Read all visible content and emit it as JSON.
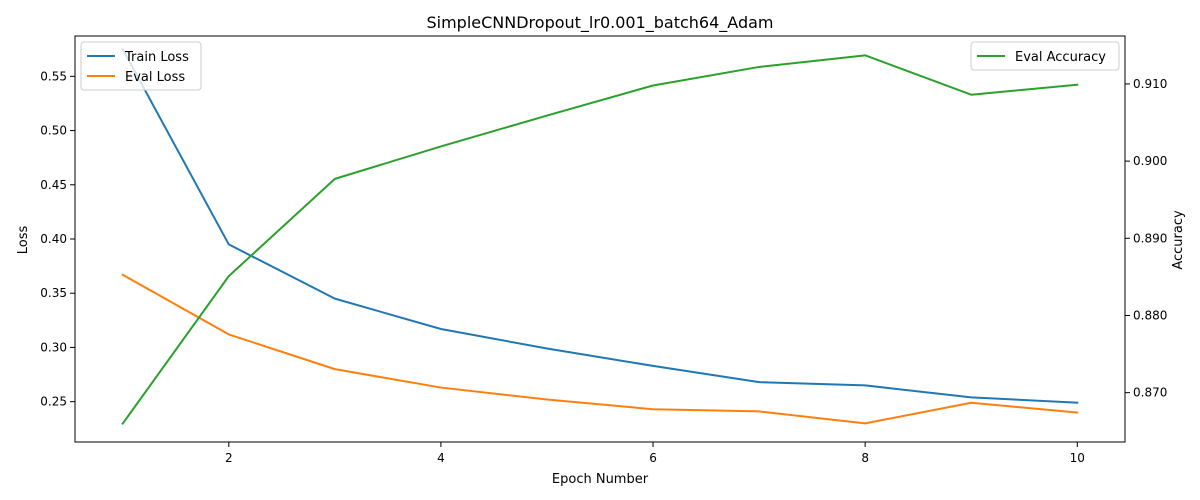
{
  "chart_data": {
    "type": "line",
    "title": "SimpleCNNDropout_lr0.001_batch64_Adam",
    "xlabel": "Epoch Number",
    "ylabel_left": "Loss",
    "ylabel_right": "Accuracy",
    "x": [
      1,
      2,
      3,
      4,
      5,
      6,
      7,
      8,
      9,
      10
    ],
    "xlim": [
      0.55,
      10.45
    ],
    "xticks": [
      2,
      4,
      6,
      8,
      10
    ],
    "ylim_left": [
      0.2128,
      0.5872
    ],
    "yticks_left": [
      "0.25",
      "0.30",
      "0.35",
      "0.40",
      "0.45",
      "0.50",
      "0.55"
    ],
    "ylim_right": [
      0.86361,
      0.91621
    ],
    "yticks_right": [
      "0.870",
      "0.880",
      "0.890",
      "0.900",
      "0.910"
    ],
    "grid": false,
    "legend_left_position": "upper-left",
    "legend_right_position": "upper-right",
    "series": [
      {
        "name": "Train Loss",
        "axis": "left",
        "color": "#1f77b4",
        "values": [
          0.575,
          0.395,
          0.345,
          0.317,
          0.299,
          0.283,
          0.268,
          0.265,
          0.254,
          0.249
        ]
      },
      {
        "name": "Eval Loss",
        "axis": "left",
        "color": "#ff7f0e",
        "values": [
          0.367,
          0.312,
          0.28,
          0.263,
          0.252,
          0.243,
          0.241,
          0.23,
          0.249,
          0.24
        ]
      },
      {
        "name": "Eval Accuracy",
        "axis": "right",
        "color": "#2ca02c",
        "values": [
          0.866,
          0.8851,
          0.8977,
          0.9019,
          0.9059,
          0.9098,
          0.9122,
          0.9137,
          0.9086,
          0.9099
        ]
      }
    ]
  }
}
